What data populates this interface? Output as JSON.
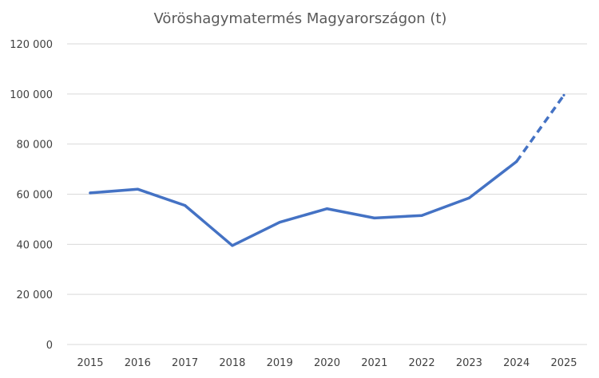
{
  "chart_data": {
    "type": "line",
    "title": "Vöröshagymatermés Magyarországon (t)",
    "xlabel": "",
    "ylabel": "",
    "categories": [
      "2015",
      "2016",
      "2017",
      "2018",
      "2019",
      "2020",
      "2021",
      "2022",
      "2023",
      "2024",
      "2025"
    ],
    "series": [
      {
        "values": [
          60500,
          62000,
          55500,
          39500,
          48800,
          54200,
          50500,
          51500,
          58500,
          73000,
          99500
        ],
        "color": "#4472c4",
        "dashed_from_index": 9
      }
    ],
    "y_ticks": [
      0,
      20000,
      40000,
      60000,
      80000,
      100000,
      120000
    ],
    "y_tick_labels": [
      "0",
      "20 000",
      "40 000",
      "60 000",
      "80 000",
      "100 000",
      "120 000"
    ],
    "ylim": [
      0,
      120000
    ],
    "grid": true,
    "legend": "none"
  }
}
